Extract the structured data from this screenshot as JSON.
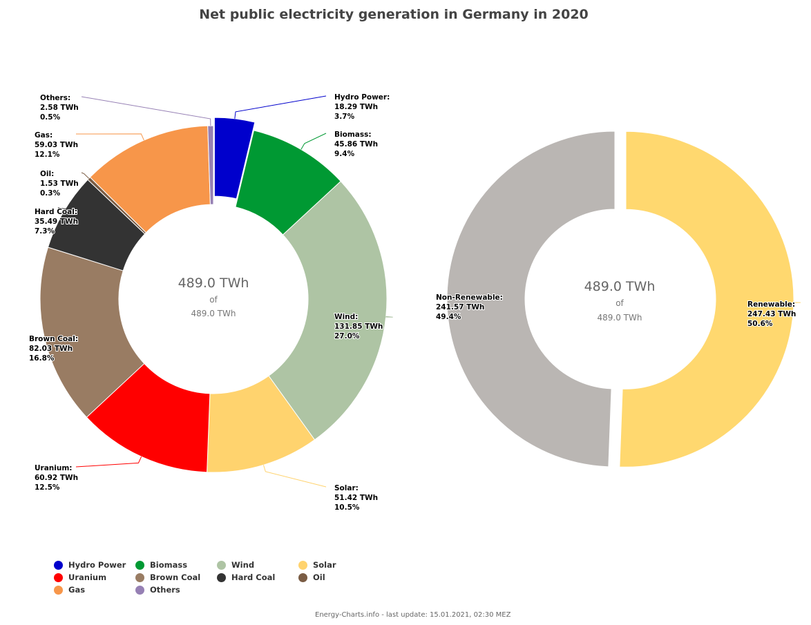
{
  "title": "Net public electricity generation in Germany in 2020",
  "footer": "Energy-Charts.info - last update: 15.01.2021, 02:30 MEZ",
  "chart_data": [
    {
      "type": "pie",
      "variant": "donut",
      "unit": "TWh",
      "center_value": "489.0 TWh",
      "center_of": "of",
      "center_total": "489.0 TWh",
      "slices": [
        {
          "name": "Hydro Power",
          "value": 18.29,
          "value_label": "18.29 TWh",
          "percent": "3.7%",
          "color": "#0000cc",
          "selected": true
        },
        {
          "name": "Biomass",
          "value": 45.86,
          "value_label": "45.86 TWh",
          "percent": "9.4%",
          "color": "#009933"
        },
        {
          "name": "Wind",
          "value": 131.85,
          "value_label": "131.85 TWh",
          "percent": "27.0%",
          "color": "#aec4a4"
        },
        {
          "name": "Solar",
          "value": 51.42,
          "value_label": "51.42 TWh",
          "percent": "10.5%",
          "color": "#ffd36e"
        },
        {
          "name": "Uranium",
          "value": 60.92,
          "value_label": "60.92 TWh",
          "percent": "12.5%",
          "color": "#ff0000"
        },
        {
          "name": "Brown Coal",
          "value": 82.03,
          "value_label": "82.03 TWh",
          "percent": "16.8%",
          "color": "#997c63"
        },
        {
          "name": "Hard Coal",
          "value": 35.49,
          "value_label": "35.49 TWh",
          "percent": "7.3%",
          "color": "#333333"
        },
        {
          "name": "Oil",
          "value": 1.53,
          "value_label": "1.53 TWh",
          "percent": "0.3%",
          "color": "#7a5c44"
        },
        {
          "name": "Gas",
          "value": 59.03,
          "value_label": "59.03 TWh",
          "percent": "12.1%",
          "color": "#f7964a"
        },
        {
          "name": "Others",
          "value": 2.58,
          "value_label": "2.58 TWh",
          "percent": "0.5%",
          "color": "#9680b4"
        }
      ]
    },
    {
      "type": "pie",
      "variant": "donut",
      "unit": "TWh",
      "center_value": "489.0 TWh",
      "center_of": "of",
      "center_total": "489.0 TWh",
      "slices": [
        {
          "name": "Renewable",
          "value": 247.43,
          "value_label": "247.43 TWh",
          "percent": "50.6%",
          "color": "#ffd86f",
          "selected": true
        },
        {
          "name": "Non-Renewable",
          "value": 241.57,
          "value_label": "241.57 TWh",
          "percent": "49.4%",
          "color": "#bab6b3"
        }
      ]
    }
  ],
  "legend": [
    {
      "label": "Hydro Power",
      "color": "#0000cc"
    },
    {
      "label": "Biomass",
      "color": "#009933"
    },
    {
      "label": "Wind",
      "color": "#aec4a4"
    },
    {
      "label": "Solar",
      "color": "#ffd36e"
    },
    {
      "label": "Uranium",
      "color": "#ff0000"
    },
    {
      "label": "Brown Coal",
      "color": "#997c63"
    },
    {
      "label": "Hard Coal",
      "color": "#333333"
    },
    {
      "label": "Oil",
      "color": "#7a5c44"
    },
    {
      "label": "Gas",
      "color": "#f7964a"
    },
    {
      "label": "Others",
      "color": "#9680b4"
    }
  ]
}
